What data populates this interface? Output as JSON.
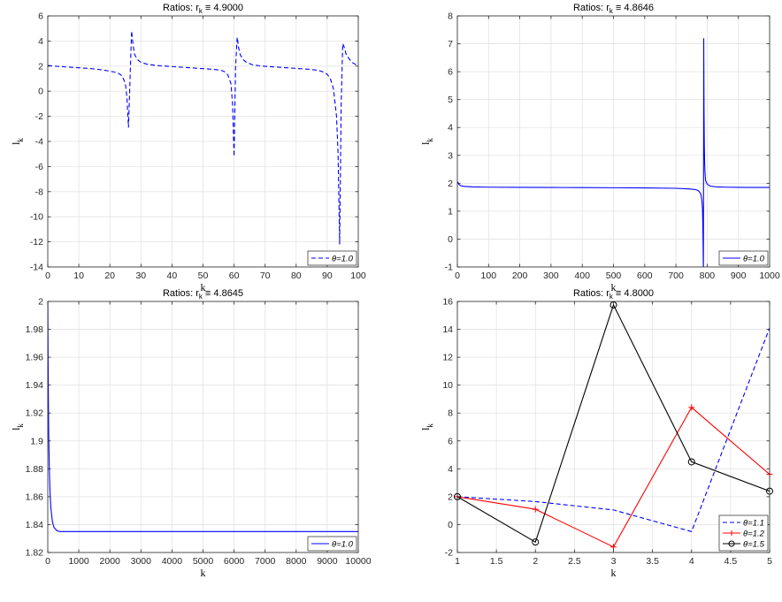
{
  "chart_data": [
    {
      "type": "line",
      "title": "Ratios: r_k ≡ 4.9000",
      "title_prefix": "Ratios: r",
      "title_sub": "k",
      "title_suffix": "≡ 4.9000",
      "xlabel": "k",
      "ylabel_base": "l",
      "ylabel_sub": "k",
      "xlim": [
        0,
        100
      ],
      "ylim": [
        -14,
        6
      ],
      "xticks": [
        0,
        10,
        20,
        30,
        40,
        50,
        60,
        70,
        80,
        90,
        100
      ],
      "yticks": [
        -14,
        -12,
        -10,
        -8,
        -6,
        -4,
        -2,
        0,
        2,
        4,
        6
      ],
      "xtick_labels": [
        "0",
        "10",
        "20",
        "30",
        "40",
        "50",
        "60",
        "70",
        "80",
        "90",
        "100"
      ],
      "ytick_labels": [
        "-14",
        "-12",
        "-10",
        "-8",
        "-6",
        "-4",
        "-2",
        "0",
        "2",
        "4",
        "6"
      ],
      "grid": true,
      "legend_position": "bottom-right",
      "series": [
        {
          "name": "θ=1.0",
          "color": "#0000ff",
          "dash": "dashed",
          "marker": "none",
          "x": [
            0,
            2,
            5,
            8,
            11,
            14,
            17,
            20,
            22,
            23,
            24,
            25,
            25.5,
            26,
            26.5,
            27,
            27.5,
            28,
            29,
            30,
            32,
            35,
            38,
            41,
            44,
            47,
            50,
            53,
            55,
            56,
            57,
            58,
            59,
            59.5,
            60,
            60.5,
            61,
            61.5,
            62,
            63,
            64,
            66,
            69,
            72,
            75,
            78,
            81,
            84,
            86,
            88,
            89,
            90,
            91,
            92,
            93,
            93.5,
            94,
            94.5,
            95,
            95.5,
            96,
            97,
            98,
            99,
            100
          ],
          "y": [
            2.05,
            2.0,
            1.95,
            1.9,
            1.85,
            1.8,
            1.72,
            1.6,
            1.5,
            1.4,
            1.2,
            0.6,
            -0.5,
            -2.9,
            1.0,
            4.8,
            3.6,
            2.9,
            2.5,
            2.3,
            2.15,
            2.05,
            2.0,
            1.95,
            1.9,
            1.85,
            1.8,
            1.75,
            1.7,
            1.65,
            1.55,
            1.3,
            0.6,
            -1.0,
            -5.2,
            2.0,
            4.3,
            3.4,
            2.9,
            2.5,
            2.3,
            2.1,
            2.0,
            1.95,
            1.9,
            1.85,
            1.8,
            1.75,
            1.7,
            1.6,
            1.5,
            1.35,
            1.0,
            0.2,
            -2.0,
            -5.0,
            -12.2,
            -1.0,
            3.8,
            3.5,
            3.0,
            2.6,
            2.3,
            2.15,
            2.05
          ]
        }
      ],
      "legend_entries": [
        "θ=1.0"
      ]
    },
    {
      "type": "line",
      "title": "Ratios: r_k ≡ 4.8646",
      "title_prefix": "Ratios: r",
      "title_sub": "k",
      "title_suffix": "≡ 4.8646",
      "xlabel": "k",
      "ylabel_base": "l",
      "ylabel_sub": "k",
      "xlim": [
        0,
        1000
      ],
      "ylim": [
        -1,
        8
      ],
      "xticks": [
        0,
        100,
        200,
        300,
        400,
        500,
        600,
        700,
        800,
        900,
        1000
      ],
      "yticks": [
        -1,
        0,
        1,
        2,
        3,
        4,
        5,
        6,
        7,
        8
      ],
      "xtick_labels": [
        "0",
        "100",
        "200",
        "300",
        "400",
        "500",
        "600",
        "700",
        "800",
        "900",
        "1000"
      ],
      "ytick_labels": [
        "-1",
        "0",
        "1",
        "2",
        "3",
        "4",
        "5",
        "6",
        "7",
        "8"
      ],
      "grid": true,
      "legend_position": "bottom-right",
      "series": [
        {
          "name": "θ=1.0",
          "color": "#0000ff",
          "dash": "solid",
          "marker": "none",
          "x": [
            1,
            5,
            10,
            20,
            50,
            100,
            200,
            300,
            400,
            500,
            600,
            700,
            740,
            760,
            770,
            775,
            780,
            783,
            785,
            786,
            787,
            788,
            789,
            790,
            791,
            792,
            793,
            795,
            800,
            810,
            830,
            860,
            900,
            950,
            1000
          ],
          "y": [
            2.05,
            1.96,
            1.92,
            1.89,
            1.87,
            1.86,
            1.855,
            1.85,
            1.845,
            1.84,
            1.835,
            1.82,
            1.8,
            1.78,
            1.75,
            1.7,
            1.6,
            1.4,
            1.1,
            0.6,
            -0.2,
            -1.2,
            7.2,
            4.5,
            3.3,
            2.7,
            2.4,
            2.1,
            1.97,
            1.9,
            1.87,
            1.86,
            1.855,
            1.85,
            1.85
          ]
        }
      ],
      "legend_entries": [
        "θ=1.0"
      ]
    },
    {
      "type": "line",
      "title": "Ratios: r_k ≡ 4.8645",
      "title_prefix": "Ratios: r",
      "title_sub": "k",
      "title_suffix": "≡ 4.8645",
      "xlabel": "k",
      "ylabel_base": "l",
      "ylabel_sub": "k",
      "xlim": [
        0,
        10000
      ],
      "ylim": [
        1.82,
        2.0
      ],
      "xticks": [
        0,
        1000,
        2000,
        3000,
        4000,
        5000,
        6000,
        7000,
        8000,
        9000,
        10000
      ],
      "yticks": [
        1.82,
        1.84,
        1.86,
        1.88,
        1.9,
        1.92,
        1.94,
        1.96,
        1.98,
        2.0
      ],
      "xtick_labels": [
        "0",
        "1000",
        "2000",
        "3000",
        "4000",
        "5000",
        "6000",
        "7000",
        "8000",
        "9000",
        "10000"
      ],
      "ytick_labels": [
        "1.82",
        "1.84",
        "1.86",
        "1.88",
        "1.9",
        "1.92",
        "1.94",
        "1.96",
        "1.98",
        "2"
      ],
      "grid": true,
      "legend_position": "bottom-right",
      "series": [
        {
          "name": "θ=1.0",
          "color": "#0000ff",
          "dash": "solid",
          "marker": "none",
          "x": [
            1,
            10,
            20,
            30,
            50,
            75,
            100,
            150,
            200,
            300,
            400,
            500,
            700,
            1000,
            2000,
            5000,
            10000
          ],
          "y": [
            2.0,
            1.96,
            1.93,
            1.905,
            1.88,
            1.862,
            1.852,
            1.842,
            1.838,
            1.8355,
            1.835,
            1.835,
            1.835,
            1.835,
            1.835,
            1.835,
            1.835
          ]
        }
      ],
      "legend_entries": [
        "θ=1.0"
      ]
    },
    {
      "type": "line",
      "title": "Ratios: r_k ≡ 4.8000",
      "title_prefix": "Ratios: r",
      "title_sub": "k",
      "title_suffix": "≡ 4.8000",
      "xlabel": "k",
      "ylabel_base": "l",
      "ylabel_sub": "k",
      "xlim": [
        1,
        5
      ],
      "ylim": [
        -2,
        16
      ],
      "xticks": [
        1,
        1.5,
        2,
        2.5,
        3,
        3.5,
        4,
        4.5,
        5
      ],
      "yticks": [
        -2,
        0,
        2,
        4,
        6,
        8,
        10,
        12,
        14,
        16
      ],
      "xtick_labels": [
        "1",
        "1.5",
        "2",
        "2.5",
        "3",
        "3.5",
        "4",
        "4.5",
        "5"
      ],
      "ytick_labels": [
        "-2",
        "0",
        "2",
        "4",
        "6",
        "8",
        "10",
        "12",
        "14",
        "16"
      ],
      "grid": true,
      "legend_position": "bottom-right",
      "series": [
        {
          "name": "θ=1.1",
          "color": "#0000ff",
          "dash": "dashed",
          "marker": "none",
          "x": [
            1,
            2,
            3,
            4,
            5
          ],
          "y": [
            2.0,
            1.65,
            1.05,
            -0.5,
            14.1
          ]
        },
        {
          "name": "θ=1.2",
          "color": "#ff0000",
          "dash": "solid",
          "marker": "plus",
          "x": [
            1,
            2,
            3,
            4,
            5
          ],
          "y": [
            2.0,
            1.1,
            -1.6,
            8.4,
            3.6
          ]
        },
        {
          "name": "θ=1.5",
          "color": "#000000",
          "dash": "solid",
          "marker": "circle",
          "x": [
            1,
            2,
            3,
            4,
            5
          ],
          "y": [
            2.0,
            -1.25,
            15.75,
            4.5,
            2.4
          ]
        }
      ],
      "legend_entries": [
        "θ=1.1",
        "θ=1.2",
        "θ=1.5"
      ]
    }
  ]
}
